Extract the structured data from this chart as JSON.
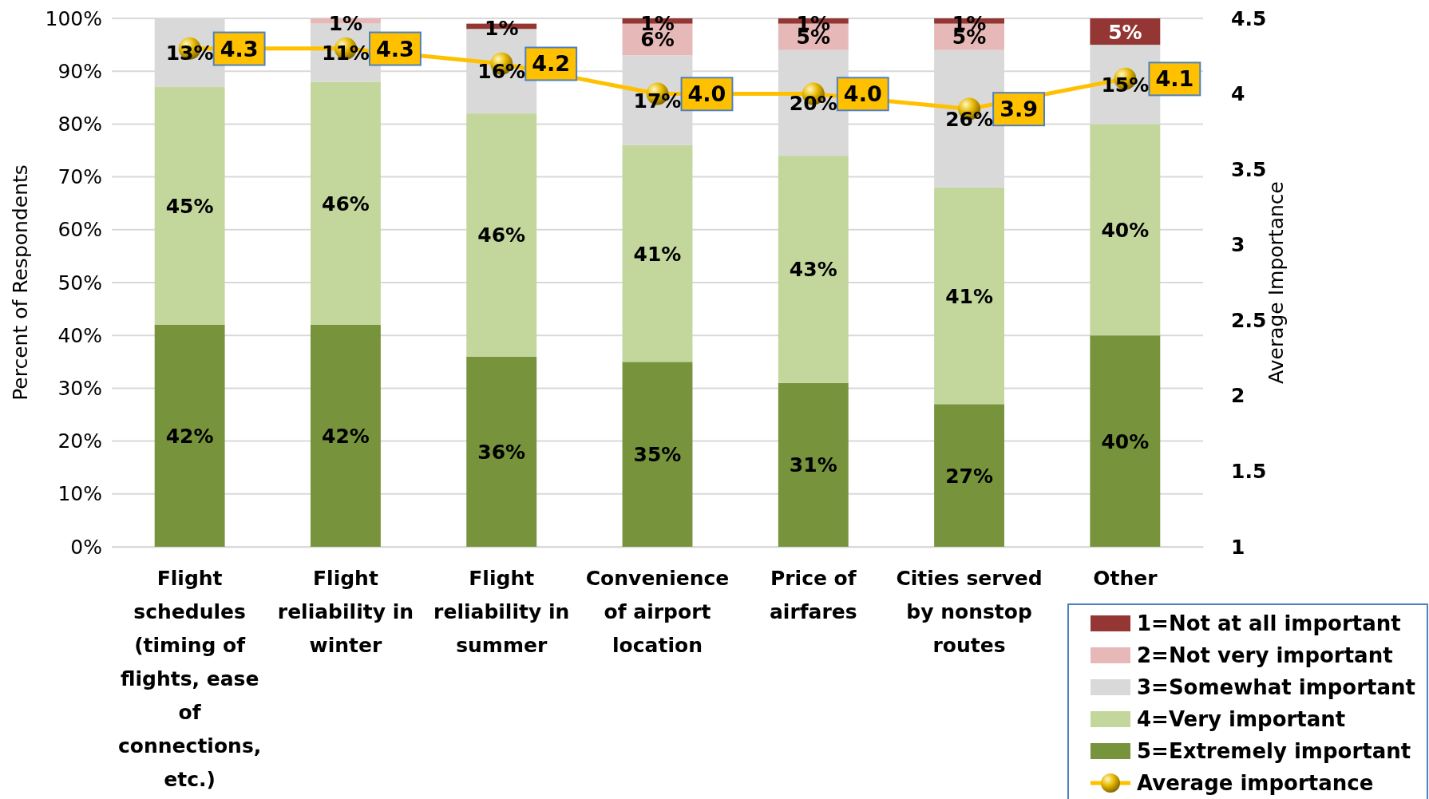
{
  "chart_data": {
    "type": "bar",
    "stacked": true,
    "categories": [
      "Flight schedules (timing of flights, ease of connections, etc.)",
      "Flight reliability in winter",
      "Flight reliability in summer",
      "Convenience of airport location",
      "Price of airfares",
      "Cities served by nonstop routes",
      "Other"
    ],
    "series": [
      {
        "name": "5=Extremely important",
        "color": "#77933c",
        "values": [
          42,
          42,
          36,
          35,
          31,
          27,
          40
        ],
        "value_labels": [
          "42%",
          "42%",
          "36%",
          "35%",
          "31%",
          "27%",
          "40%"
        ]
      },
      {
        "name": "4=Very important",
        "color": "#c3d69b",
        "values": [
          45,
          46,
          46,
          41,
          43,
          41,
          40
        ],
        "value_labels": [
          "45%",
          "46%",
          "46%",
          "41%",
          "43%",
          "41%",
          "40%"
        ]
      },
      {
        "name": "3=Somewhat important",
        "color": "#d9d9d9",
        "values": [
          13,
          11,
          16,
          17,
          20,
          26,
          15
        ],
        "value_labels": [
          "13%",
          "11%",
          "16%",
          "17%",
          "20%",
          "26%",
          "15%"
        ]
      },
      {
        "name": "2=Not very important",
        "color": "#e6b9b8",
        "values": [
          0,
          1,
          0,
          6,
          5,
          5,
          0
        ],
        "value_labels": [
          null,
          "1%",
          null,
          "6%",
          "5%",
          "5%",
          null
        ]
      },
      {
        "name": "1=Not at all important",
        "color": "#943634",
        "values": [
          0,
          0,
          1,
          1,
          1,
          1,
          5
        ],
        "value_labels": [
          null,
          null,
          "1%",
          "1%",
          "1%",
          "1%",
          "5%"
        ]
      },
      {
        "name": "Average importance",
        "type": "line",
        "axis": "y2",
        "color": "#ffc000",
        "marker": "circle",
        "values": [
          4.3,
          4.3,
          4.2,
          4.0,
          4.0,
          3.9,
          4.1
        ],
        "value_labels": [
          "4.3",
          "4.3",
          "4.2",
          "4.0",
          "4.0",
          "3.9",
          "4.1"
        ]
      }
    ],
    "ylabel": "Percent of Respondents",
    "y2label": "Average Importance",
    "ylim": [
      0,
      100
    ],
    "yticks": [
      {
        "value": 0,
        "label": "0%"
      },
      {
        "value": 10,
        "label": "10%"
      },
      {
        "value": 20,
        "label": "20%"
      },
      {
        "value": 30,
        "label": "30%"
      },
      {
        "value": 40,
        "label": "40%"
      },
      {
        "value": 50,
        "label": "50%"
      },
      {
        "value": 60,
        "label": "60%"
      },
      {
        "value": 70,
        "label": "70%"
      },
      {
        "value": 80,
        "label": "80%"
      },
      {
        "value": 90,
        "label": "90%"
      },
      {
        "value": 100,
        "label": "100%"
      }
    ],
    "y2lim": [
      1,
      4.5
    ],
    "y2ticks": [
      1,
      1.5,
      2,
      2.5,
      3,
      3.5,
      4,
      4.5
    ],
    "grid": "y",
    "legend": "bottom right"
  }
}
